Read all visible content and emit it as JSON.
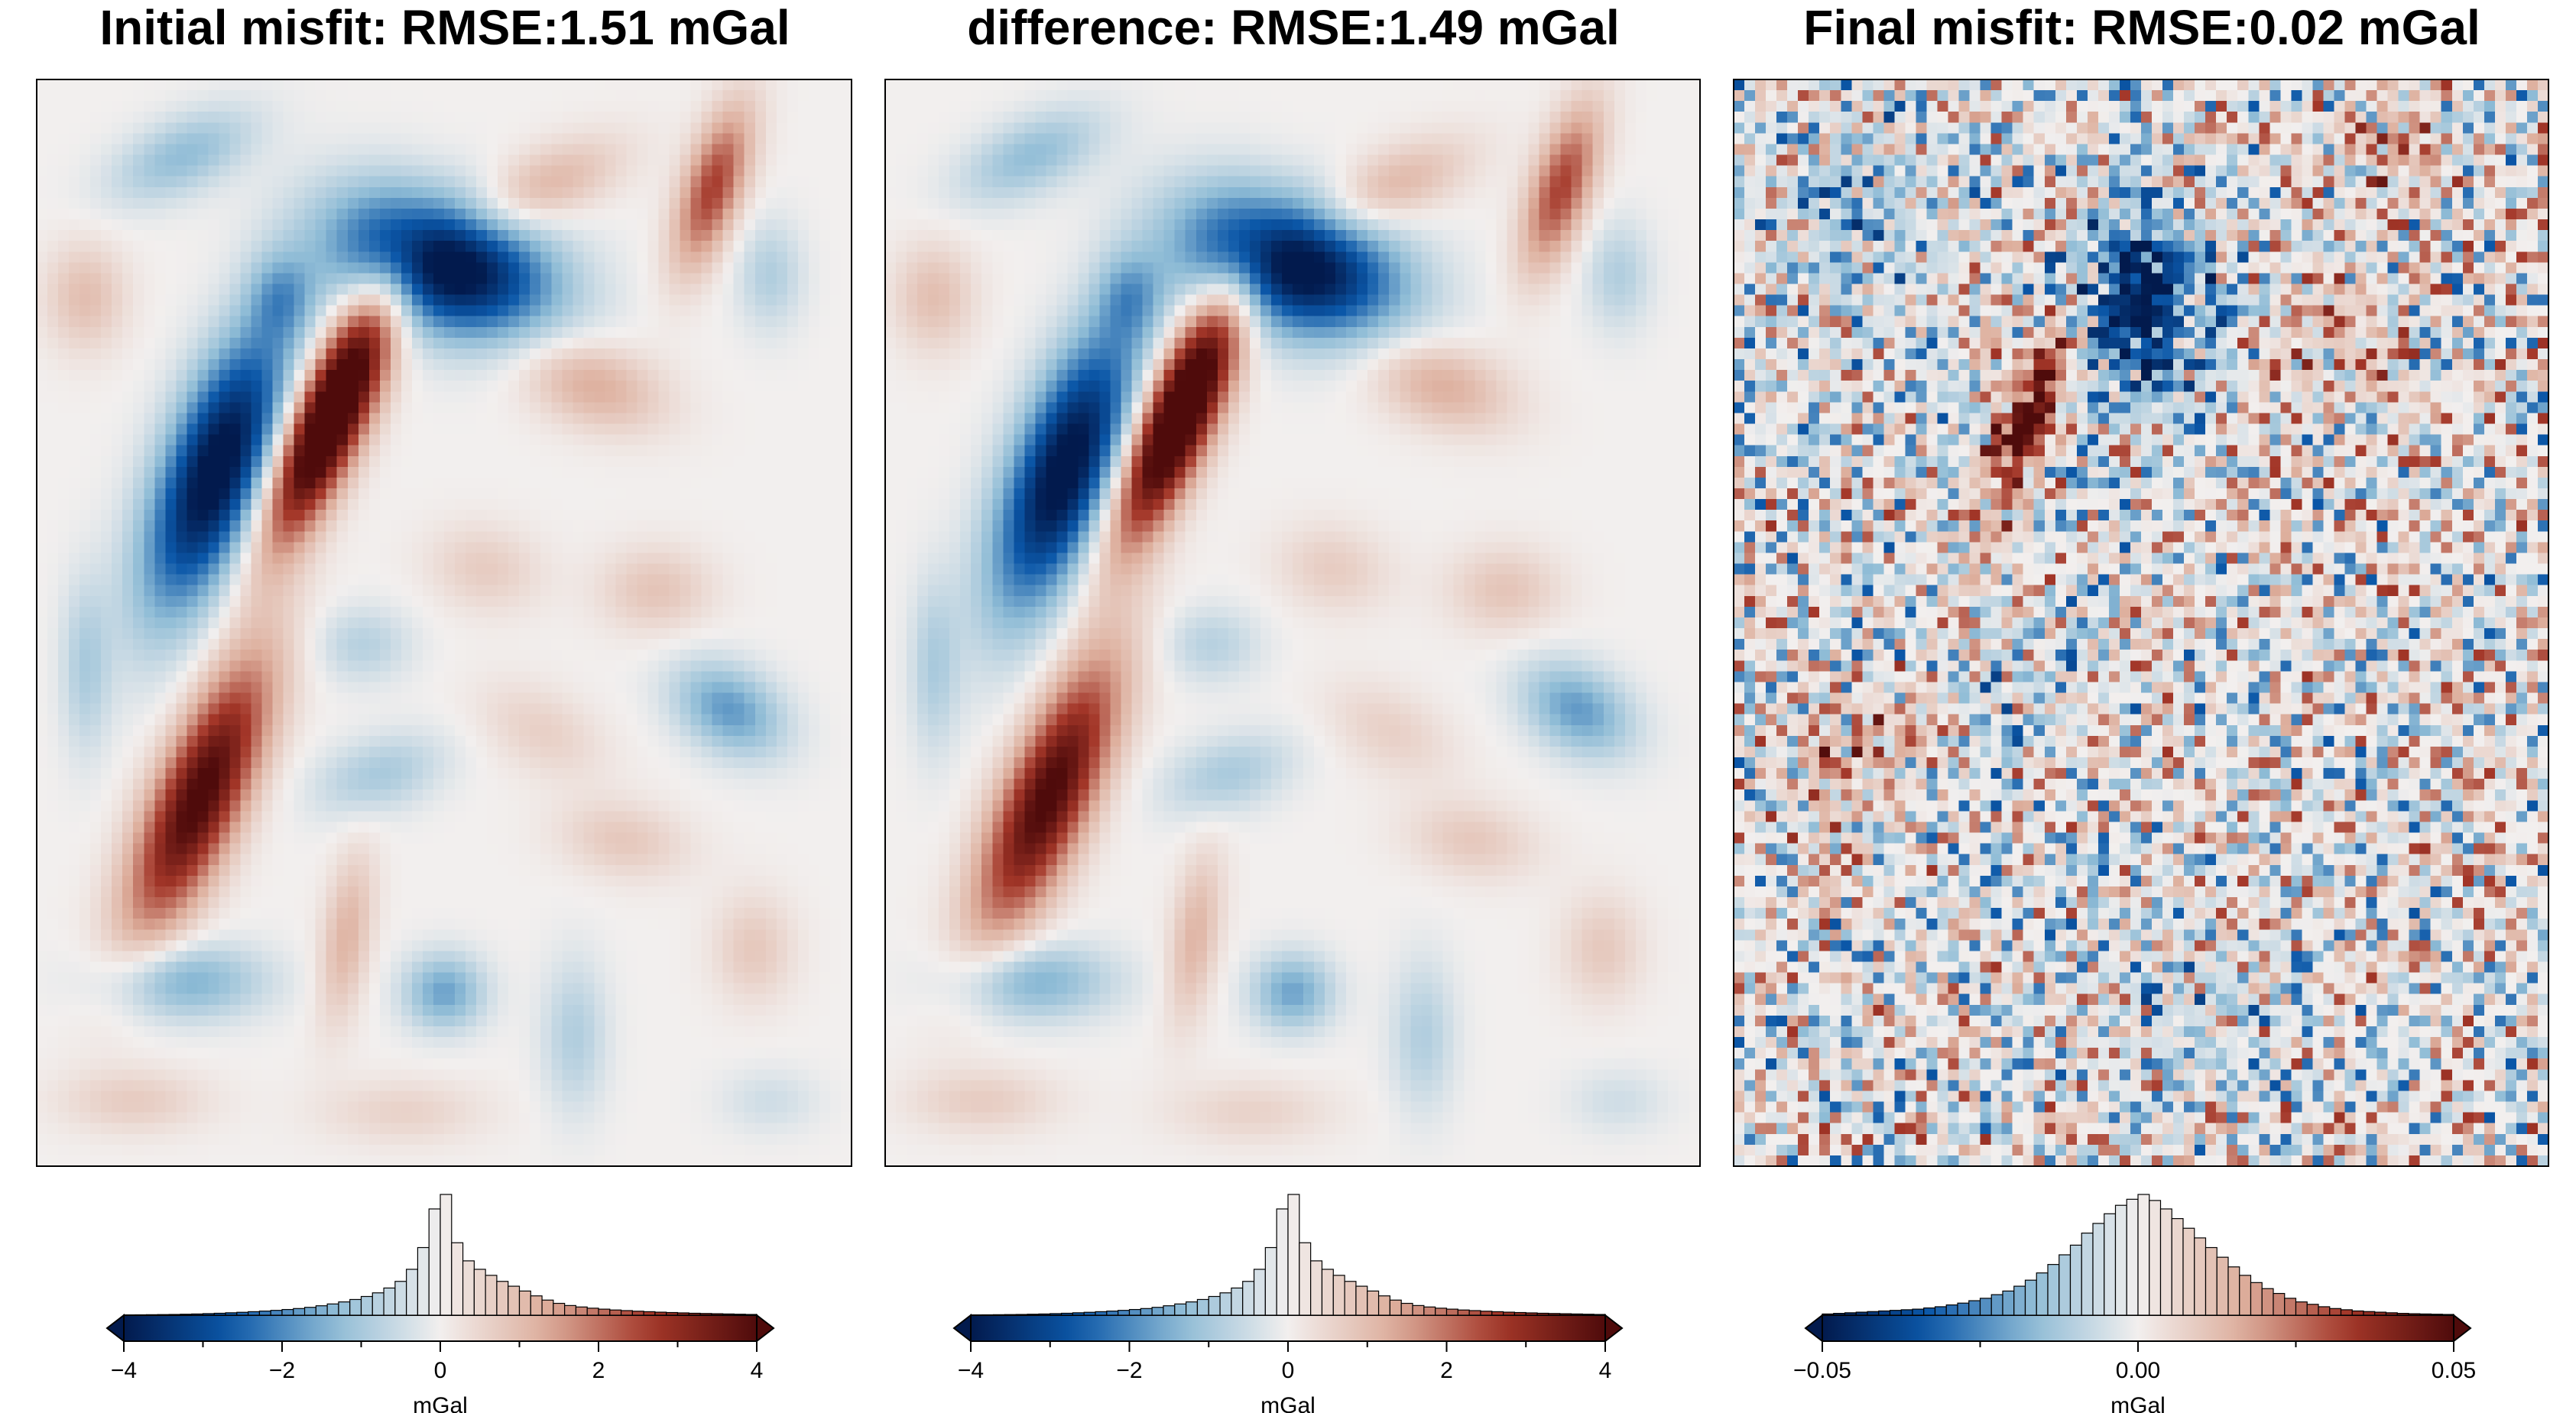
{
  "chart_data": [
    {
      "type": "heatmap",
      "title": "Initial misfit: RMSE:1.51 mGal",
      "colormap": "vik (diverging blue-white-red)",
      "colors": [
        "#021a4d",
        "#0b57a8",
        "#8fbcd6",
        "#f2efee",
        "#ddae9c",
        "#a33628",
        "#4f0b0b"
      ],
      "color_range": [
        -4,
        4
      ],
      "colorbar": {
        "label": "mGal",
        "ticks": [
          -4,
          -2,
          0,
          2,
          4
        ],
        "tick_labels": [
          "−4",
          "−2",
          "0",
          "2",
          "4"
        ],
        "histogram": [
          0.002,
          0.003,
          0.004,
          0.005,
          0.006,
          0.008,
          0.01,
          0.013,
          0.016,
          0.02,
          0.024,
          0.029,
          0.034,
          0.04,
          0.047,
          0.055,
          0.065,
          0.078,
          0.093,
          0.11,
          0.13,
          0.155,
          0.185,
          0.225,
          0.28,
          0.38,
          0.56,
          0.88,
          1.0,
          0.6,
          0.45,
          0.38,
          0.33,
          0.28,
          0.24,
          0.2,
          0.16,
          0.125,
          0.098,
          0.08,
          0.068,
          0.058,
          0.05,
          0.043,
          0.038,
          0.033,
          0.029,
          0.025,
          0.022,
          0.019,
          0.016,
          0.014,
          0.012,
          0.01,
          0.008,
          0.006
        ]
      }
    },
    {
      "type": "heatmap",
      "title": "difference: RMSE:1.49 mGal",
      "colormap": "vik (diverging blue-white-red)",
      "colors": [
        "#021a4d",
        "#0b57a8",
        "#8fbcd6",
        "#f2efee",
        "#ddae9c",
        "#a33628",
        "#4f0b0b"
      ],
      "color_range": [
        -4,
        4
      ],
      "colorbar": {
        "label": "mGal",
        "ticks": [
          -4,
          -2,
          0,
          2,
          4
        ],
        "tick_labels": [
          "−4",
          "−2",
          "0",
          "2",
          "4"
        ],
        "histogram": [
          0.002,
          0.003,
          0.004,
          0.005,
          0.006,
          0.008,
          0.01,
          0.013,
          0.016,
          0.02,
          0.024,
          0.029,
          0.034,
          0.04,
          0.047,
          0.055,
          0.065,
          0.078,
          0.093,
          0.11,
          0.13,
          0.155,
          0.185,
          0.225,
          0.28,
          0.38,
          0.56,
          0.88,
          1.0,
          0.6,
          0.45,
          0.38,
          0.33,
          0.28,
          0.24,
          0.2,
          0.16,
          0.125,
          0.098,
          0.08,
          0.068,
          0.058,
          0.05,
          0.043,
          0.038,
          0.033,
          0.029,
          0.025,
          0.022,
          0.019,
          0.016,
          0.014,
          0.012,
          0.01,
          0.008,
          0.006
        ]
      }
    },
    {
      "type": "heatmap",
      "title": "Final misfit: RMSE:0.02 mGal",
      "colormap": "vik (diverging blue-white-red)",
      "colors": [
        "#021a4d",
        "#0b57a8",
        "#8fbcd6",
        "#f2efee",
        "#ddae9c",
        "#a33628",
        "#4f0b0b"
      ],
      "color_range": [
        -0.05,
        0.05
      ],
      "colorbar": {
        "label": "mGal",
        "ticks": [
          -0.05,
          0,
          0.05
        ],
        "tick_labels": [
          "−0.05",
          "0.00",
          "0.05"
        ],
        "histogram": [
          0.01,
          0.015,
          0.02,
          0.025,
          0.03,
          0.035,
          0.04,
          0.045,
          0.05,
          0.06,
          0.07,
          0.085,
          0.1,
          0.12,
          0.14,
          0.17,
          0.2,
          0.24,
          0.29,
          0.35,
          0.42,
          0.5,
          0.58,
          0.68,
          0.76,
          0.84,
          0.91,
          0.96,
          1.0,
          0.95,
          0.88,
          0.8,
          0.72,
          0.64,
          0.56,
          0.48,
          0.4,
          0.33,
          0.27,
          0.22,
          0.18,
          0.14,
          0.11,
          0.09,
          0.07,
          0.055,
          0.045,
          0.035,
          0.03,
          0.025,
          0.02,
          0.015,
          0.012,
          0.01,
          0.008,
          0.006
        ]
      }
    }
  ]
}
